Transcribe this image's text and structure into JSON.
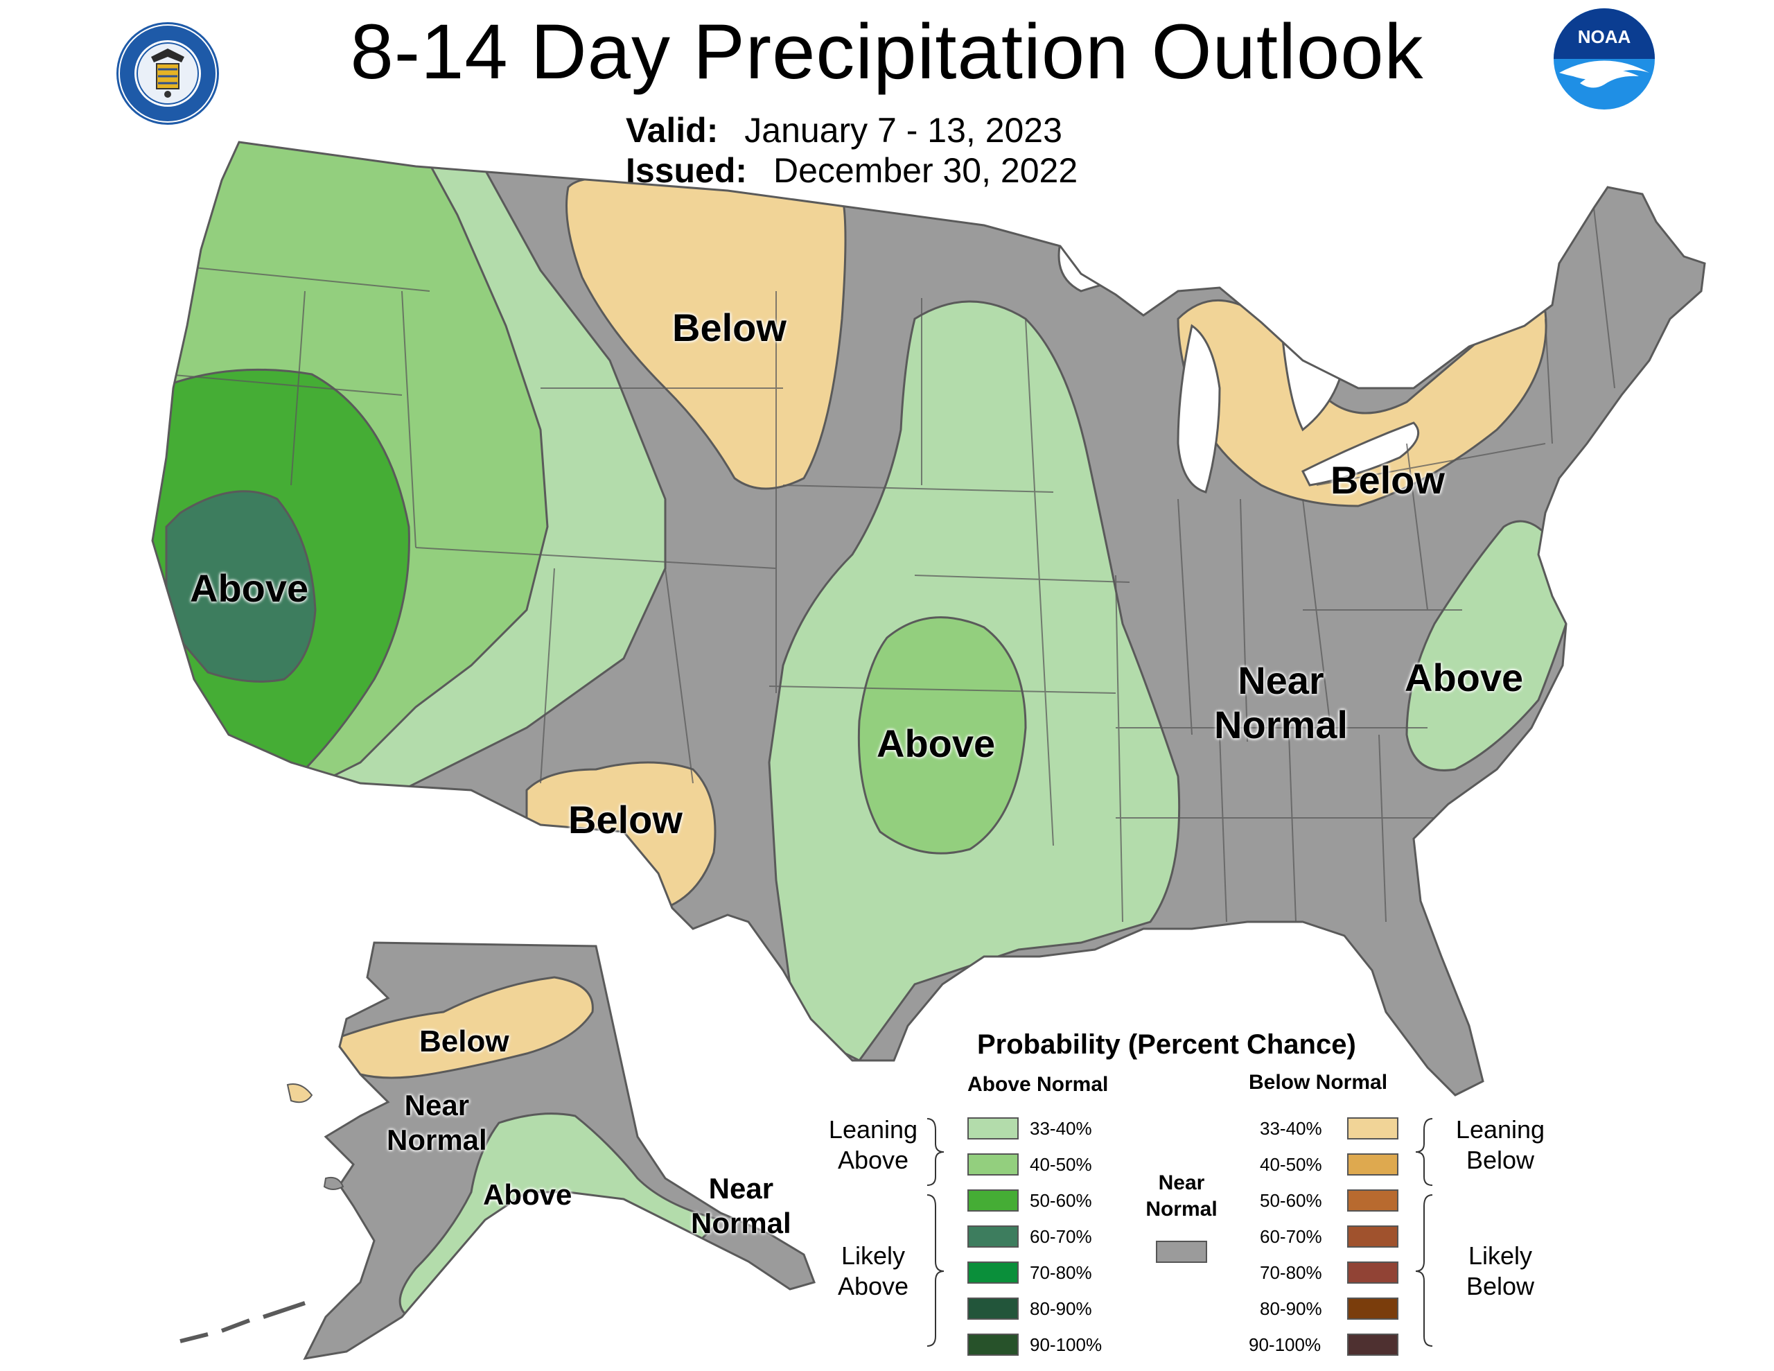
{
  "header": {
    "title": "8-14 Day Precipitation Outlook",
    "valid_label": "Valid:",
    "valid_value": "January 7 - 13, 2023",
    "issued_label": "Issued:",
    "issued_value": "December 30, 2022"
  },
  "logos": {
    "commerce_seal_text": "DEPARTMENT OF COMMERCE · UNITED STATES OF AMERICA",
    "noaa_text": "NOAA"
  },
  "map_labels": {
    "below_plains": "Below",
    "below_great_lakes": "Below",
    "below_southwest": "Below",
    "above_california": "Above",
    "above_plains": "Above",
    "above_southeast": "Above",
    "near_normal_line1": "Near",
    "near_normal_line2": "Normal",
    "ak_below": "Below",
    "ak_near_line1": "Near",
    "ak_near_line2": "Normal",
    "ak_above": "Above",
    "ak_se_near_line1": "Near",
    "ak_se_near_line2": "Normal"
  },
  "legend": {
    "title": "Probability (Percent Chance)",
    "above_header": "Above Normal",
    "below_header": "Below Normal",
    "leaning_above": [
      "Leaning",
      "Above"
    ],
    "likely_above": [
      "Likely",
      "Above"
    ],
    "leaning_below": [
      "Leaning",
      "Below"
    ],
    "likely_below": [
      "Likely",
      "Below"
    ],
    "near_normal": [
      "Near",
      "Normal"
    ],
    "near_normal_color": "#9b9b9b",
    "above_bins": [
      {
        "label": "33-40%",
        "color": "#b3dcab"
      },
      {
        "label": "40-50%",
        "color": "#93cf7e"
      },
      {
        "label": "50-60%",
        "color": "#45ad35"
      },
      {
        "label": "60-70%",
        "color": "#3d7d5e"
      },
      {
        "label": "70-80%",
        "color": "#0a8f3a"
      },
      {
        "label": "80-90%",
        "color": "#22553a"
      },
      {
        "label": "90-100%",
        "color": "#27522a"
      }
    ],
    "below_bins": [
      {
        "label": "33-40%",
        "color": "#f1d497"
      },
      {
        "label": "40-50%",
        "color": "#dea94f"
      },
      {
        "label": "50-60%",
        "color": "#b86a2f"
      },
      {
        "label": "60-70%",
        "color": "#a0522d"
      },
      {
        "label": "70-80%",
        "color": "#914335"
      },
      {
        "label": "80-90%",
        "color": "#7a3d0c"
      },
      {
        "label": "90-100%",
        "color": "#4e3030"
      }
    ]
  },
  "colors": {
    "near_normal": "#9b9b9b",
    "border": "#5a5a5a",
    "water": "#ffffff"
  }
}
